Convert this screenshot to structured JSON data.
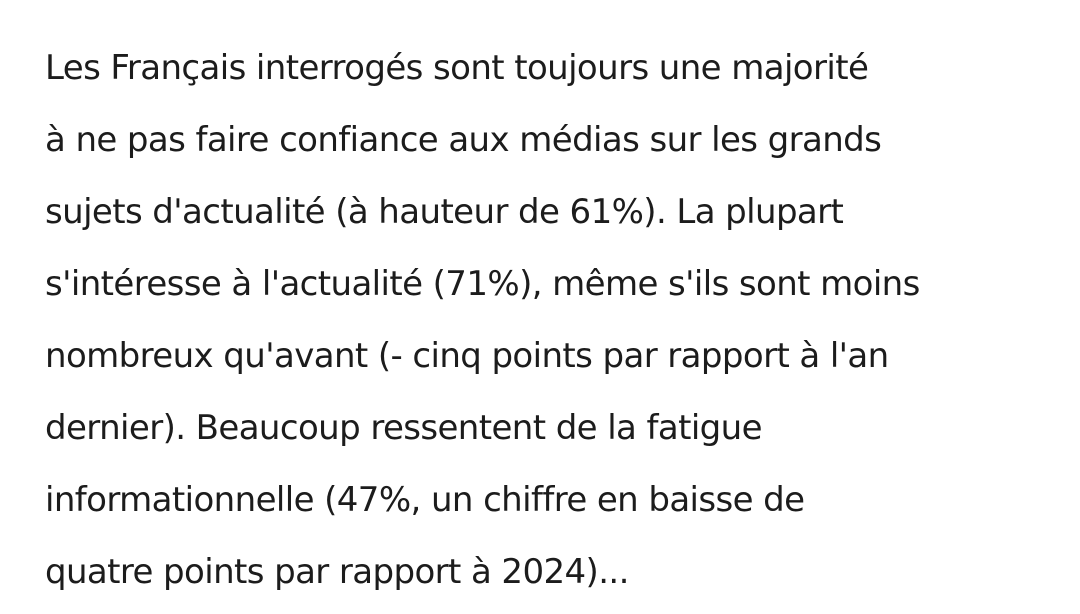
{
  "article": {
    "lines": [
      "Les Français interrogés sont toujours une majorité",
      "à ne pas faire confiance aux médias sur les grands",
      "sujets d'actualité (à hauteur de 61%). La plupart",
      "s'intéresse à l'actualité (71%), même s'ils sont moins",
      "nombreux qu'avant (- cinq points par rapport à l'an",
      "dernier). Beaucoup ressentent de la fatigue",
      "informationnelle (47%, un chiffre en baisse de",
      "quatre points par rapport à 2024)..."
    ]
  }
}
